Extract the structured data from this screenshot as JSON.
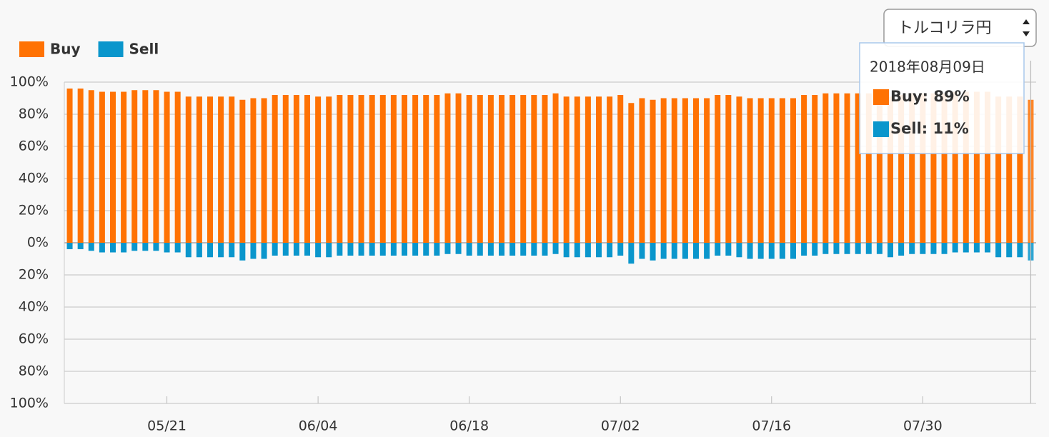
{
  "chart_data": {
    "type": "bar",
    "categories": [
      null,
      null,
      null,
      null,
      null,
      null,
      null,
      null,
      null,
      "05/21",
      null,
      null,
      null,
      null,
      null,
      null,
      null,
      null,
      null,
      null,
      null,
      null,
      null,
      "06/04",
      null,
      null,
      null,
      null,
      null,
      null,
      null,
      null,
      null,
      null,
      null,
      null,
      null,
      "06/18",
      null,
      null,
      null,
      null,
      null,
      null,
      null,
      null,
      null,
      null,
      null,
      null,
      null,
      "07/02",
      null,
      null,
      null,
      null,
      null,
      null,
      null,
      null,
      null,
      null,
      null,
      null,
      null,
      "07/16",
      null,
      null,
      null,
      null,
      null,
      null,
      null,
      null,
      null,
      null,
      null,
      null,
      null,
      "07/30",
      null,
      null,
      null,
      null,
      null,
      null,
      null,
      null,
      null,
      null
    ],
    "series": [
      {
        "name": "Buy",
        "color": "#ff7203",
        "values": [
          96,
          96,
          95,
          94,
          94,
          94,
          95,
          95,
          95,
          94,
          94,
          91,
          91,
          91,
          91,
          91,
          89,
          90,
          90,
          92,
          92,
          92,
          92,
          91,
          91,
          92,
          92,
          92,
          92,
          92,
          92,
          92,
          92,
          92,
          92,
          93,
          93,
          92,
          92,
          92,
          92,
          92,
          92,
          92,
          92,
          93,
          91,
          91,
          91,
          91,
          91,
          92,
          87,
          90,
          89,
          90,
          90,
          90,
          90,
          90,
          92,
          92,
          91,
          90,
          90,
          90,
          90,
          90,
          92,
          92,
          93,
          93,
          93,
          93,
          93,
          93,
          91,
          92,
          93,
          93,
          93,
          93,
          94,
          94,
          94,
          94,
          91,
          91,
          91,
          89
        ]
      },
      {
        "name": "Sell",
        "color": "#0a96cc",
        "values": [
          -4,
          -4,
          -5,
          -6,
          -6,
          -6,
          -5,
          -5,
          -5,
          -6,
          -6,
          -9,
          -9,
          -9,
          -9,
          -9,
          -11,
          -10,
          -10,
          -8,
          -8,
          -8,
          -8,
          -9,
          -9,
          -8,
          -8,
          -8,
          -8,
          -8,
          -8,
          -8,
          -8,
          -8,
          -8,
          -7,
          -7,
          -8,
          -8,
          -8,
          -8,
          -8,
          -8,
          -8,
          -8,
          -7,
          -9,
          -9,
          -9,
          -9,
          -9,
          -8,
          -13,
          -10,
          -11,
          -10,
          -10,
          -10,
          -10,
          -10,
          -8,
          -8,
          -9,
          -10,
          -10,
          -10,
          -10,
          -10,
          -8,
          -8,
          -7,
          -7,
          -7,
          -7,
          -7,
          -7,
          -9,
          -8,
          -7,
          -7,
          -7,
          -7,
          -6,
          -6,
          -6,
          -6,
          -9,
          -9,
          -9,
          -11
        ]
      }
    ],
    "ylim": [
      -100,
      100
    ],
    "yticks": [
      {
        "value": 100,
        "label": "100%"
      },
      {
        "value": 80,
        "label": "80%"
      },
      {
        "value": 60,
        "label": "60%"
      },
      {
        "value": 40,
        "label": "40%"
      },
      {
        "value": 20,
        "label": "20%"
      },
      {
        "value": 0,
        "label": "0%"
      },
      {
        "value": -20,
        "label": "20%"
      },
      {
        "value": -40,
        "label": "40%"
      },
      {
        "value": -60,
        "label": "60%"
      },
      {
        "value": -80,
        "label": "80%"
      },
      {
        "value": -100,
        "label": "100%"
      }
    ],
    "grid": true,
    "tooltip": {
      "title": "2018年08月09日",
      "items": [
        "Buy: 89%",
        "Sell: 11%"
      ]
    }
  },
  "controls": {
    "currency": "トルコリラ円"
  }
}
